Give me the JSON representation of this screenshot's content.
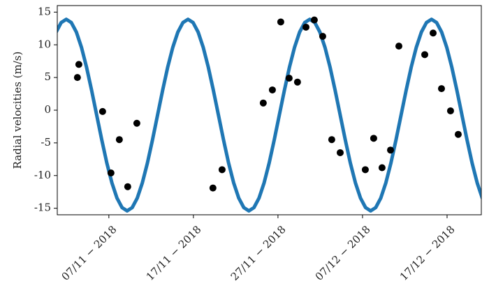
{
  "chart_data": {
    "type": "scatter",
    "ylabel": "Radial velocities (m/s)",
    "xlim": [
      0.9,
      51.05
    ],
    "ylim": [
      -16,
      16
    ],
    "xticks": [
      {
        "value": 7,
        "label": "07/11 − 2018"
      },
      {
        "value": 17,
        "label": "17/11 − 2018"
      },
      {
        "value": 27,
        "label": "27/11 − 2018"
      },
      {
        "value": 37,
        "label": "07/12 − 2018"
      },
      {
        "value": 47,
        "label": "17/12 − 2018"
      }
    ],
    "yticks": [
      -15,
      -10,
      -5,
      0,
      5,
      10,
      15
    ],
    "points": {
      "color": "#000000",
      "x": [
        3.28,
        3.45,
        6.26,
        7.25,
        8.24,
        9.23,
        10.31,
        19.31,
        20.39,
        25.26,
        26.34,
        27.33,
        28.32,
        29.31,
        30.31,
        31.3,
        32.29,
        33.36,
        34.36,
        37.33,
        38.32,
        39.31,
        40.31,
        41.3,
        44.36,
        45.35,
        46.34,
        47.41,
        48.32
      ],
      "y": [
        5.0,
        7.0,
        -0.2,
        -9.6,
        -4.5,
        -11.7,
        -2.0,
        -11.9,
        -9.1,
        1.1,
        3.1,
        13.5,
        4.9,
        4.3,
        12.7,
        13.8,
        11.3,
        -4.5,
        -6.5,
        -9.1,
        -4.3,
        -8.8,
        -6.1,
        9.8,
        8.5,
        11.8,
        3.3,
        -0.1,
        -3.7
      ]
    },
    "line": {
      "color": "#1f77b4",
      "x": [
        0.76,
        1.36,
        1.96,
        2.56,
        3.16,
        3.76,
        4.36,
        4.96,
        5.56,
        6.16,
        6.76,
        7.36,
        7.96,
        8.56,
        9.16,
        9.76,
        10.36,
        10.96,
        11.56,
        12.16,
        12.76,
        13.36,
        13.96,
        14.56,
        15.16,
        15.76,
        16.36,
        16.96,
        17.56,
        18.16,
        18.76,
        19.36,
        19.96,
        20.56,
        21.16,
        21.76,
        22.36,
        22.96,
        23.56,
        24.16,
        24.76,
        25.36,
        25.96,
        26.56,
        27.16,
        27.76,
        28.36,
        28.96,
        29.56,
        30.16,
        30.76,
        31.36,
        31.96,
        32.56,
        33.16,
        33.76,
        34.36,
        34.96,
        35.56,
        36.16,
        36.76,
        37.36,
        37.96,
        38.56,
        39.16,
        39.76,
        40.36,
        40.96,
        41.56,
        42.16,
        42.76,
        43.36,
        43.96,
        44.56,
        45.16,
        45.76,
        46.36,
        46.96,
        47.56,
        48.16,
        48.76,
        49.36,
        49.96,
        50.56,
        51.16
      ],
      "y": [
        11.94,
        13.4,
        13.9,
        13.4,
        11.94,
        9.61,
        6.58,
        3.04,
        -0.75,
        -4.54,
        -8.08,
        -11.11,
        -13.44,
        -14.9,
        -15.4,
        -14.9,
        -13.44,
        -11.11,
        -8.08,
        -4.54,
        -0.75,
        3.04,
        6.58,
        9.61,
        11.94,
        13.4,
        13.9,
        13.4,
        11.94,
        9.61,
        6.58,
        3.04,
        -0.75,
        -4.54,
        -8.08,
        -11.11,
        -13.44,
        -14.9,
        -15.4,
        -14.9,
        -13.44,
        -11.11,
        -8.08,
        -4.54,
        -0.75,
        3.04,
        6.58,
        9.61,
        11.94,
        13.4,
        13.9,
        13.4,
        11.94,
        9.61,
        6.58,
        3.04,
        -0.75,
        -4.54,
        -8.08,
        -11.11,
        -13.44,
        -14.9,
        -15.4,
        -14.9,
        -13.44,
        -11.11,
        -8.08,
        -4.54,
        -0.75,
        3.04,
        6.58,
        9.61,
        11.94,
        13.4,
        13.9,
        13.4,
        11.94,
        9.61,
        6.58,
        3.04,
        -0.75,
        -4.54,
        -8.08,
        -11.11,
        -13.44
      ]
    }
  }
}
